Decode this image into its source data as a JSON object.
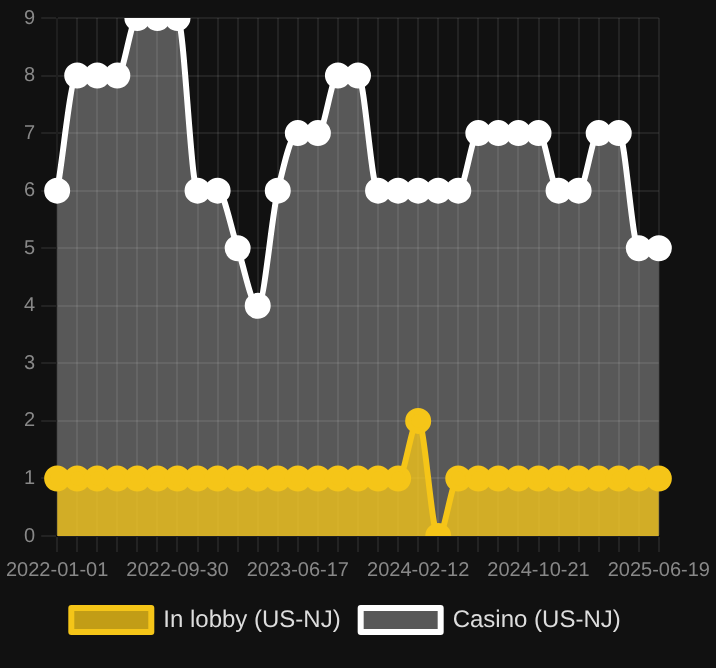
{
  "chart_data": {
    "type": "area",
    "categories": [
      "2022-01-01",
      null,
      null,
      null,
      null,
      null,
      "2022-09-30",
      null,
      null,
      null,
      null,
      null,
      "2023-06-17",
      null,
      null,
      null,
      null,
      null,
      "2024-02-12",
      null,
      null,
      null,
      null,
      null,
      "2024-10-21",
      null,
      null,
      null,
      null,
      null,
      "2025-06-19"
    ],
    "series": [
      {
        "name": "In lobby (US-NJ)",
        "color": "#f5c518",
        "values": [
          1,
          1,
          1,
          1,
          1,
          1,
          1,
          1,
          1,
          1,
          1,
          1,
          1,
          1,
          1,
          1,
          1,
          1,
          2,
          0,
          1,
          1,
          1,
          1,
          1,
          1,
          1,
          1,
          1,
          1,
          1
        ]
      },
      {
        "name": "Casino (US-NJ)",
        "color": "#ffffff",
        "values": [
          6,
          8,
          8,
          8,
          9,
          9,
          9,
          6,
          6,
          5,
          4,
          6,
          7,
          7,
          8,
          8,
          6,
          6,
          6,
          6,
          6,
          7,
          7,
          7,
          7,
          6,
          6,
          7,
          7,
          5,
          5
        ]
      }
    ],
    "ylim": [
      0,
      9
    ],
    "yticks": [
      0,
      1,
      2,
      3,
      4,
      5,
      6,
      7,
      8,
      9
    ],
    "grid": true,
    "legend": "bottom",
    "marker": "circle",
    "line_style": "solid"
  }
}
